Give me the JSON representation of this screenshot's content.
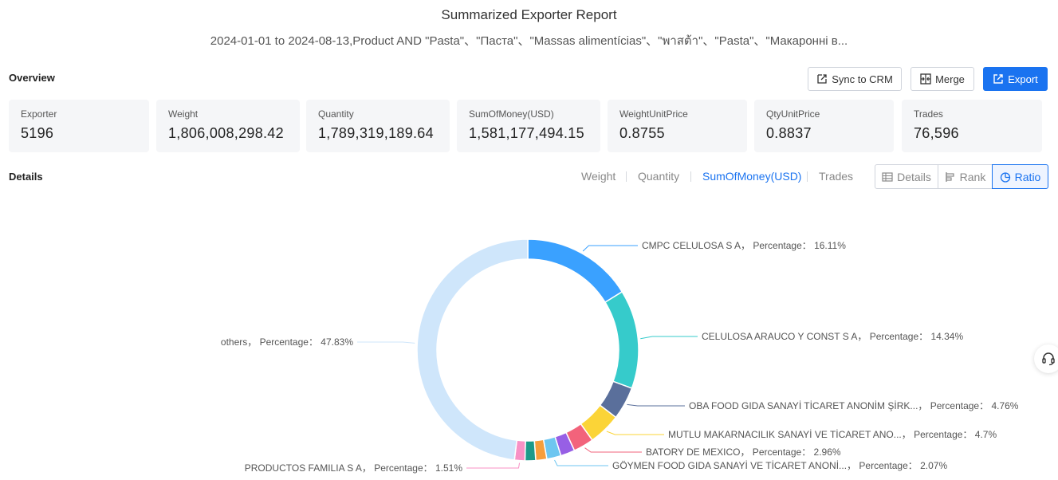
{
  "header": {
    "title": "Summarized Exporter Report",
    "subtitle": "2024-01-01 to 2024-08-13,Product AND \"Pasta\"、\"Паста\"、\"Massas alimentícias\"、\"พาสต้า\"、\"Pasta\"、\"Макаронні в..."
  },
  "overview": {
    "label": "Overview",
    "buttons": {
      "sync": "Sync to CRM",
      "merge": "Merge",
      "export": "Export"
    },
    "cards": [
      {
        "label": "Exporter",
        "value": "5196"
      },
      {
        "label": "Weight",
        "value": "1,806,008,298.42"
      },
      {
        "label": "Quantity",
        "value": "1,789,319,189.64"
      },
      {
        "label": "SumOfMoney(USD)",
        "value": "1,581,177,494.15"
      },
      {
        "label": "WeightUnitPrice",
        "value": "0.8755"
      },
      {
        "label": "QtyUnitPrice",
        "value": "0.8837"
      },
      {
        "label": "Trades",
        "value": "76,596"
      }
    ]
  },
  "details": {
    "label": "Details",
    "metric_tabs": [
      "Weight",
      "Quantity",
      "SumOfMoney(USD)",
      "Trades"
    ],
    "active_metric": "SumOfMoney(USD)",
    "view_buttons": [
      "Details",
      "Rank",
      "Ratio"
    ],
    "active_view": "Ratio"
  },
  "icons": {
    "sync": "sync-crm-icon",
    "merge": "merge-icon",
    "export": "export-icon",
    "details": "table-icon",
    "rank": "bar-rank-icon",
    "ratio": "pie-icon",
    "support": "headset-icon"
  },
  "colors": {
    "accent": "#1a73f0"
  },
  "chart_data": {
    "type": "pie",
    "donut": true,
    "legend": "none",
    "label_format": "{name}，  Percentage： {pct}%",
    "slices": [
      {
        "name": "CMPC CELULOSA S A",
        "pct": 16.11,
        "color": "#3aa1ff"
      },
      {
        "name": "CELULOSA ARAUCO Y CONST S A",
        "pct": 14.34,
        "color": "#36cbcb"
      },
      {
        "name": "OBA FOOD GIDA SANAYİ TİCARET ANONİM ŞİRK...",
        "pct": 4.76,
        "color": "#5a6f9b"
      },
      {
        "name": "MUTLU MAKARNACILIK SANAYİ VE TİCARET ANO...",
        "pct": 4.7,
        "color": "#fbd437"
      },
      {
        "name": "BATORY DE MEXICO",
        "pct": 2.96,
        "color": "#f2637b"
      },
      {
        "name": "",
        "pct": 2.07,
        "color": "#975fe5"
      },
      {
        "name": "GÖYMEN FOOD GIDA SANAYİ VE TİCARET ANONİ...",
        "pct": 2.07,
        "color": "#6ec6f0"
      },
      {
        "name": "",
        "pct": 1.6,
        "color": "#f79e3c"
      },
      {
        "name": "",
        "pct": 1.55,
        "color": "#1d9a8a"
      },
      {
        "name": "PRODUCTOS FAMILIA S A",
        "pct": 1.51,
        "color": "#f891c5"
      },
      {
        "name": "others",
        "pct": 47.83,
        "color": "#cfe6fb"
      }
    ]
  }
}
